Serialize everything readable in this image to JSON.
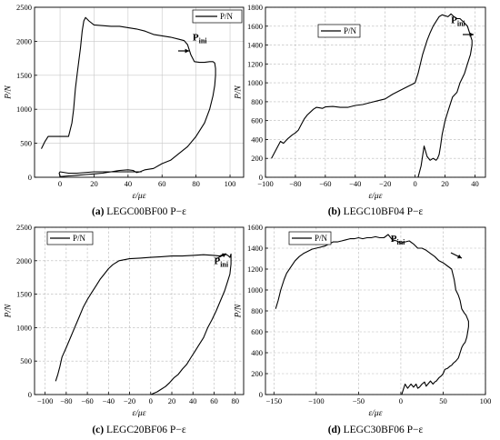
{
  "chart_data": [
    {
      "type": "line",
      "panel": "a",
      "caption_label": "(a)",
      "caption_text": "LEGC00BF00 P−ε",
      "xlabel": "ε/με",
      "ylabel": "P/N",
      "xlim": [
        -15,
        108
      ],
      "ylim": [
        0,
        2500
      ],
      "xticks": [
        0,
        20,
        40,
        60,
        80,
        100
      ],
      "yticks": [
        0,
        500,
        1000,
        1500,
        2000,
        2500
      ],
      "grid": "solid",
      "legend": "top-right",
      "annotation": {
        "main": "P",
        "sub": "ini",
        "x": 78,
        "y": 2015
      },
      "series": [
        {
          "name": "P/N",
          "x": [
            -11,
            -9,
            -7,
            -5,
            0,
            5,
            7,
            8,
            9,
            10,
            11,
            12,
            13,
            14,
            15,
            17,
            20,
            25,
            30,
            35,
            40,
            45,
            50,
            55,
            60,
            65,
            70,
            73,
            75,
            77,
            79,
            82,
            85,
            88,
            90,
            91,
            91.5,
            91.5,
            91,
            90,
            88,
            85,
            80,
            75,
            70,
            65,
            60,
            55,
            50,
            47,
            45,
            43,
            40,
            35,
            30,
            25,
            20,
            15,
            10,
            5,
            0,
            -0.5,
            0,
            5,
            10,
            20,
            30,
            40,
            48
          ],
          "y": [
            420,
            520,
            600,
            600,
            600,
            600,
            800,
            1000,
            1300,
            1500,
            1700,
            1900,
            2150,
            2300,
            2350,
            2300,
            2240,
            2230,
            2220,
            2220,
            2200,
            2180,
            2150,
            2100,
            2080,
            2060,
            2030,
            2010,
            1950,
            1800,
            1700,
            1690,
            1690,
            1700,
            1700,
            1680,
            1600,
            1500,
            1350,
            1200,
            1000,
            800,
            600,
            450,
            350,
            250,
            200,
            130,
            110,
            80,
            70,
            100,
            110,
            100,
            80,
            60,
            50,
            40,
            30,
            20,
            10,
            60,
            80,
            60,
            60,
            80,
            80,
            80,
            80
          ]
        }
      ]
    },
    {
      "type": "line",
      "panel": "b",
      "caption_label": "(b)",
      "caption_text": "LEGC10BF04 P−ε",
      "xlabel": "ε/με",
      "ylabel": "P/N",
      "xlim": [
        -100,
        47
      ],
      "ylim": [
        0,
        1800
      ],
      "xticks": [
        -100,
        -80,
        -60,
        -40,
        -20,
        0,
        20,
        40
      ],
      "yticks": [
        0,
        200,
        400,
        600,
        800,
        1000,
        1200,
        1400,
        1600,
        1800
      ],
      "grid": "dashed",
      "legend": "top-left",
      "annotation": {
        "main": "P",
        "sub": "ini",
        "x": 24,
        "y": 1630
      },
      "series": [
        {
          "name": "P/N",
          "x": [
            -96,
            -94,
            -92,
            -90,
            -88,
            -85,
            -82,
            -80,
            -78,
            -76,
            -74,
            -72,
            -70,
            -68,
            -66,
            -64,
            -62,
            -60,
            -55,
            -50,
            -45,
            -40,
            -35,
            -30,
            -25,
            -20,
            -15,
            -10,
            -5,
            0,
            2,
            5,
            8,
            10,
            12,
            14,
            16,
            18,
            20,
            22,
            24,
            26,
            28,
            30,
            32,
            35,
            37,
            38,
            38,
            37,
            35,
            33,
            30,
            28,
            25,
            22,
            20,
            18,
            17,
            16,
            15,
            14,
            12,
            10,
            8,
            6,
            4,
            2
          ],
          "y": [
            200,
            260,
            320,
            380,
            360,
            410,
            450,
            470,
            500,
            560,
            620,
            660,
            690,
            720,
            740,
            735,
            730,
            745,
            750,
            740,
            740,
            760,
            770,
            790,
            810,
            830,
            880,
            920,
            960,
            1000,
            1100,
            1300,
            1450,
            1530,
            1600,
            1650,
            1700,
            1720,
            1710,
            1700,
            1730,
            1700,
            1680,
            1680,
            1650,
            1600,
            1500,
            1450,
            1400,
            1300,
            1200,
            1100,
            1000,
            900,
            850,
            700,
            600,
            450,
            330,
            240,
            200,
            180,
            200,
            180,
            220,
            330,
            120,
            0
          ]
        }
      ]
    },
    {
      "type": "line",
      "panel": "c",
      "caption_label": "(c)",
      "caption_text": "LEGC20BF06 P−ε",
      "xlabel": "ε/με",
      "ylabel": "P/N",
      "xlim": [
        -110,
        88
      ],
      "ylim": [
        0,
        2500
      ],
      "xticks": [
        -100,
        -80,
        -60,
        -40,
        -20,
        0,
        20,
        40,
        60,
        80
      ],
      "yticks": [
        0,
        500,
        1000,
        1500,
        2000,
        2500
      ],
      "grid": "dashed",
      "legend": "top-left",
      "annotation": {
        "main": "P",
        "sub": "ini",
        "x": 60,
        "y": 1950
      },
      "series": [
        {
          "name": "P/N",
          "x": [
            -90,
            -88,
            -86,
            -84,
            -80,
            -76,
            -72,
            -68,
            -64,
            -60,
            -56,
            -52,
            -48,
            -44,
            -40,
            -36,
            -30,
            -20,
            -10,
            0,
            10,
            20,
            30,
            40,
            50,
            60,
            65,
            70,
            73,
            75,
            76,
            76,
            75,
            73,
            70,
            66,
            62,
            58,
            54,
            50,
            46,
            42,
            38,
            34,
            30,
            26,
            22,
            18,
            14,
            10,
            6,
            3,
            1,
            0
          ],
          "y": [
            200,
            300,
            420,
            560,
            700,
            850,
            1000,
            1150,
            1300,
            1420,
            1520,
            1620,
            1720,
            1800,
            1880,
            1940,
            2000,
            2030,
            2040,
            2050,
            2060,
            2070,
            2070,
            2080,
            2090,
            2080,
            2070,
            2100,
            2080,
            2050,
            2100,
            1950,
            1800,
            1700,
            1550,
            1400,
            1250,
            1120,
            1000,
            850,
            750,
            650,
            550,
            450,
            380,
            300,
            250,
            180,
            120,
            80,
            40,
            20,
            5,
            0
          ]
        }
      ]
    },
    {
      "type": "line",
      "panel": "d",
      "caption_label": "(d)",
      "caption_text": "LEGC30BF06 P−ε",
      "xlabel": "ε/με",
      "ylabel": "P/N",
      "xlim": [
        -160,
        100
      ],
      "ylim": [
        0,
        1600
      ],
      "xticks": [
        -150,
        -100,
        -50,
        0,
        50,
        100
      ],
      "yticks": [
        0,
        200,
        400,
        600,
        800,
        1000,
        1200,
        1400,
        1600
      ],
      "grid": "dashed",
      "legend": "top-left",
      "annotation": {
        "main": "P",
        "sub": "ini",
        "x": -12,
        "y": 1460
      },
      "series": [
        {
          "name": "P/N",
          "x": [
            -148,
            -145,
            -142,
            -138,
            -135,
            -130,
            -125,
            -120,
            -115,
            -110,
            -105,
            -100,
            -95,
            -90,
            -85,
            -80,
            -75,
            -70,
            -65,
            -60,
            -55,
            -50,
            -45,
            -40,
            -35,
            -30,
            -25,
            -20,
            -15,
            -10,
            -5,
            0,
            5,
            10,
            15,
            20,
            25,
            30,
            35,
            40,
            45,
            50,
            55,
            60,
            63,
            65,
            68,
            70,
            72,
            75,
            77,
            79,
            80,
            80,
            79,
            78,
            76,
            74,
            72,
            70,
            68,
            65,
            62,
            60,
            58,
            55,
            52,
            50,
            48,
            45,
            42,
            40,
            38,
            35,
            32,
            30,
            28,
            25,
            22,
            20,
            18,
            15,
            12,
            10,
            8,
            5,
            3,
            1
          ],
          "y": [
            820,
            900,
            1000,
            1100,
            1160,
            1220,
            1280,
            1320,
            1350,
            1370,
            1390,
            1400,
            1410,
            1420,
            1440,
            1460,
            1460,
            1470,
            1480,
            1490,
            1490,
            1500,
            1490,
            1500,
            1500,
            1510,
            1500,
            1500,
            1530,
            1480,
            1470,
            1450,
            1460,
            1470,
            1440,
            1400,
            1400,
            1380,
            1350,
            1320,
            1280,
            1260,
            1230,
            1200,
            1100,
            1000,
            950,
            900,
            820,
            780,
            760,
            720,
            700,
            650,
            600,
            550,
            500,
            480,
            450,
            400,
            350,
            320,
            300,
            280,
            270,
            250,
            240,
            200,
            180,
            160,
            130,
            120,
            100,
            130,
            100,
            80,
            120,
            100,
            70,
            60,
            100,
            70,
            100,
            80,
            60,
            100,
            50,
            0
          ]
        }
      ]
    }
  ]
}
